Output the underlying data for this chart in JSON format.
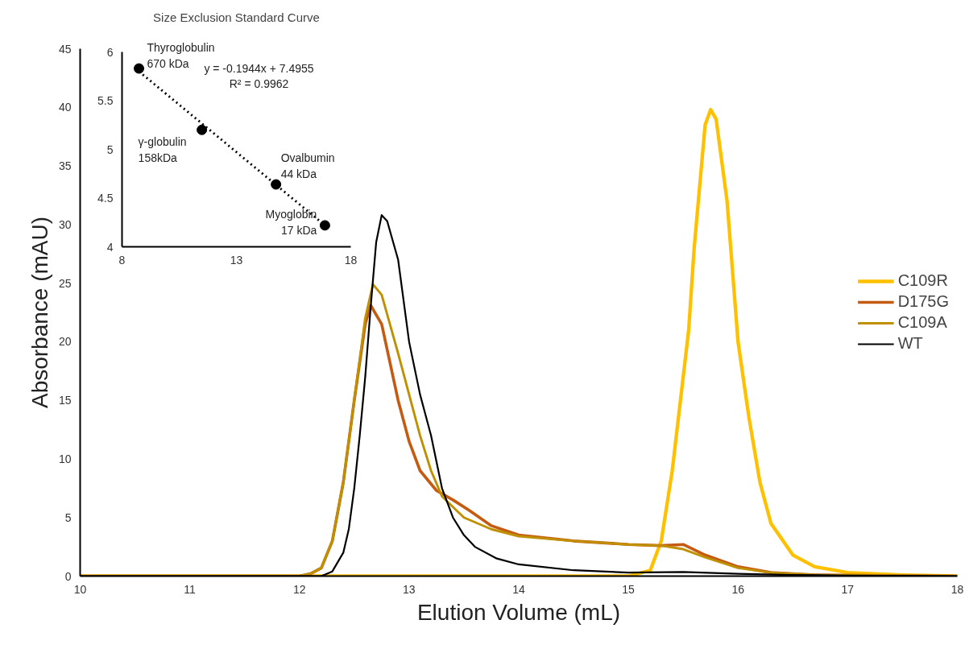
{
  "chart_data": [
    {
      "type": "line",
      "xlabel": "Elution Volume (mL)",
      "ylabel": "Absorbance (mAU)",
      "xlim": [
        10,
        18
      ],
      "xticks": [
        10,
        11,
        12,
        13,
        14,
        15,
        16,
        17,
        18
      ],
      "ylim": [
        0,
        45
      ],
      "yticks": [
        0,
        5,
        10,
        15,
        20,
        25,
        30,
        35,
        40,
        45
      ],
      "grid": false,
      "legend": "right",
      "series": [
        {
          "name": "C109R",
          "color": "#ffc000",
          "x": [
            10,
            15.0,
            15.2,
            15.3,
            15.4,
            15.5,
            15.55,
            15.6,
            15.7,
            15.75,
            15.8,
            15.9,
            16.0,
            16.1,
            16.2,
            16.3,
            16.5,
            16.7,
            17.0,
            17.5,
            18
          ],
          "values": [
            0,
            0,
            0.5,
            3,
            9,
            17,
            21,
            28,
            38.5,
            39.8,
            39,
            32,
            20,
            13.5,
            8,
            4.5,
            1.8,
            0.8,
            0.3,
            0.1,
            0
          ]
        },
        {
          "name": "D175G",
          "color": "#c55a11",
          "x": [
            10,
            12.0,
            12.1,
            12.2,
            12.3,
            12.4,
            12.5,
            12.6,
            12.65,
            12.75,
            12.9,
            13.0,
            13.1,
            13.25,
            13.4,
            13.55,
            13.75,
            14.0,
            14.5,
            15.0,
            15.3,
            15.5,
            15.7,
            16.0,
            16.3,
            16.7,
            18
          ],
          "values": [
            0,
            0,
            0.2,
            0.7,
            3,
            8,
            15,
            21.5,
            23.1,
            21.5,
            15,
            11.5,
            9,
            7.3,
            6.5,
            5.6,
            4.3,
            3.5,
            3.0,
            2.7,
            2.6,
            2.7,
            1.8,
            0.8,
            0.3,
            0.1,
            0
          ]
        },
        {
          "name": "C109A",
          "color": "#bf9000",
          "x": [
            10,
            12.0,
            12.1,
            12.2,
            12.3,
            12.4,
            12.5,
            12.6,
            12.67,
            12.75,
            12.9,
            13.0,
            13.1,
            13.2,
            13.3,
            13.5,
            13.75,
            14.0,
            14.5,
            15.0,
            15.3,
            15.5,
            15.7,
            16.0,
            16.3,
            16.7,
            18
          ],
          "values": [
            0,
            0,
            0.2,
            0.7,
            3,
            8,
            15,
            22,
            24.9,
            24,
            19,
            15.5,
            12,
            9,
            6.8,
            5,
            4,
            3.4,
            3.0,
            2.7,
            2.6,
            2.3,
            1.6,
            0.7,
            0.3,
            0.1,
            0
          ]
        },
        {
          "name": "WT",
          "color": "#000000",
          "x": [
            10,
            12.2,
            12.3,
            12.4,
            12.45,
            12.5,
            12.55,
            12.6,
            12.65,
            12.7,
            12.75,
            12.8,
            12.9,
            13.0,
            13.1,
            13.2,
            13.3,
            13.4,
            13.5,
            13.6,
            13.8,
            14.0,
            14.5,
            15.0,
            15.5,
            16.0,
            16.5,
            17.0,
            18
          ],
          "values": [
            0,
            0,
            0.4,
            2,
            4,
            7.5,
            12,
            17,
            23,
            28.5,
            30.8,
            30.3,
            27,
            20,
            15.5,
            12,
            7.5,
            5,
            3.5,
            2.5,
            1.5,
            1.0,
            0.5,
            0.3,
            0.35,
            0.2,
            0.1,
            0.05,
            0
          ]
        }
      ]
    },
    {
      "type": "scatter",
      "title": "Size Exclusion Standard Curve",
      "xlim": [
        8,
        18
      ],
      "xticks": [
        8,
        13,
        18
      ],
      "ylim": [
        4,
        6
      ],
      "yticks": [
        4,
        4.5,
        5,
        5.5,
        6
      ],
      "grid": false,
      "legend": false,
      "series": [
        {
          "type": "line",
          "color": "#000000",
          "line_style": "dotted",
          "marker": "none",
          "x": [
            8.74,
            16.87
          ],
          "values": [
            5.8,
            4.22
          ]
        },
        {
          "type": "scatter",
          "color": "#000000",
          "marker": "circle",
          "x": [
            8.74,
            11.49,
            14.73,
            16.87
          ],
          "values": [
            5.83,
            5.2,
            4.64,
            4.22
          ]
        }
      ],
      "annotations": [
        {
          "text": "Thyroglobulin\n670 kDa",
          "x": 8.74,
          "y": 5.83
        },
        {
          "text": "γ-globulin\n158kDa",
          "x": 11.49,
          "y": 5.2
        },
        {
          "text": "Ovalbumin\n44 kDa",
          "x": 14.73,
          "y": 4.64
        },
        {
          "text": "Myoglobin\n17 kDa",
          "x": 16.87,
          "y": 4.22
        },
        "y = -0.1944x + 7.4955\nR² = 0.9962"
      ]
    }
  ]
}
